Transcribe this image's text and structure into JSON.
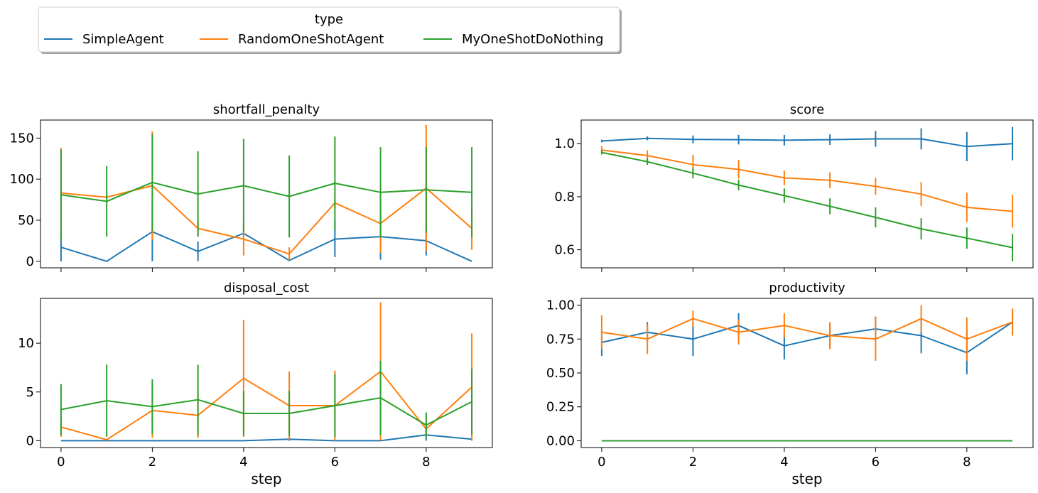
{
  "legend": {
    "title": "type",
    "entries": [
      {
        "name": "SimpleAgent",
        "color": "#1f77b4"
      },
      {
        "name": "RandomOneShotAgent",
        "color": "#ff7f0e"
      },
      {
        "name": "MyOneShotDoNothing",
        "color": "#2ca02c"
      }
    ]
  },
  "chart_data": [
    {
      "type": "line",
      "title": "shortfall_penalty",
      "xlabel": "",
      "ylabel": "",
      "x": [
        0,
        1,
        2,
        3,
        4,
        5,
        6,
        7,
        8,
        9
      ],
      "xlim": [
        -0.45,
        9.45
      ],
      "ylim": [
        -8,
        172
      ],
      "yticks": [
        0,
        50,
        100,
        150
      ],
      "xticks": [
        0,
        2,
        4,
        6,
        8
      ],
      "show_xtick_labels": false,
      "series": [
        {
          "name": "SimpleAgent",
          "color": "#1f77b4",
          "values": [
            17,
            0,
            36,
            12,
            34,
            1,
            27,
            30,
            25,
            0
          ],
          "err": [
            17,
            0,
            36,
            12,
            5,
            1,
            22,
            28,
            18,
            0
          ]
        },
        {
          "name": "RandomOneShotAgent",
          "color": "#ff7f0e",
          "values": [
            83,
            78,
            92,
            40,
            27,
            9,
            71,
            46,
            89,
            40
          ],
          "err": [
            55,
            5,
            66,
            10,
            20,
            8,
            6,
            36,
            77,
            26
          ]
        },
        {
          "name": "MyOneShotDoNothing",
          "color": "#2ca02c",
          "values": [
            81,
            73,
            96,
            82,
            92,
            79,
            95,
            84,
            87,
            84
          ],
          "err": [
            55,
            43,
            59,
            52,
            57,
            50,
            57,
            55,
            52,
            55
          ]
        }
      ]
    },
    {
      "type": "line",
      "title": "score",
      "xlabel": "",
      "ylabel": "",
      "x": [
        0,
        1,
        2,
        3,
        4,
        5,
        6,
        7,
        8,
        9
      ],
      "xlim": [
        -0.45,
        9.45
      ],
      "ylim": [
        0.532,
        1.089
      ],
      "yticks": [
        0.6,
        0.8,
        1.0
      ],
      "ytick_labels": [
        "0.6",
        "0.8",
        "1.0"
      ],
      "xticks": [
        0,
        2,
        4,
        6,
        8
      ],
      "show_xtick_labels": false,
      "series": [
        {
          "name": "SimpleAgent",
          "color": "#1f77b4",
          "values": [
            1.01,
            1.02,
            1.016,
            1.015,
            1.013,
            1.015,
            1.018,
            1.018,
            0.989,
            1.0
          ],
          "err": [
            0.005,
            0.007,
            0.015,
            0.018,
            0.02,
            0.02,
            0.03,
            0.04,
            0.055,
            0.063
          ]
        },
        {
          "name": "RandomOneShotAgent",
          "color": "#ff7f0e",
          "values": [
            0.976,
            0.955,
            0.921,
            0.903,
            0.871,
            0.862,
            0.839,
            0.81,
            0.76,
            0.745
          ],
          "err": [
            0.015,
            0.02,
            0.037,
            0.035,
            0.028,
            0.03,
            0.032,
            0.045,
            0.055,
            0.062
          ]
        },
        {
          "name": "MyOneShotDoNothing",
          "color": "#2ca02c",
          "values": [
            0.967,
            0.932,
            0.889,
            0.844,
            0.804,
            0.764,
            0.722,
            0.679,
            0.644,
            0.608
          ],
          "err": [
            0.008,
            0.012,
            0.02,
            0.02,
            0.027,
            0.03,
            0.038,
            0.04,
            0.04,
            0.052
          ]
        }
      ]
    },
    {
      "type": "line",
      "title": "disposal_cost",
      "xlabel": "step",
      "ylabel": "",
      "x": [
        0,
        1,
        2,
        3,
        4,
        5,
        6,
        7,
        8,
        9
      ],
      "xlim": [
        -0.45,
        9.45
      ],
      "ylim": [
        -0.7,
        14.6
      ],
      "yticks": [
        0,
        5,
        10
      ],
      "xticks": [
        0,
        2,
        4,
        6,
        8
      ],
      "show_xtick_labels": true,
      "series": [
        {
          "name": "SimpleAgent",
          "color": "#1f77b4",
          "values": [
            0,
            0,
            0,
            0,
            0,
            0.15,
            0,
            0,
            0.6,
            0.15
          ],
          "err": [
            0,
            0,
            0,
            0,
            0,
            0.15,
            0,
            0,
            0.6,
            0.15
          ]
        },
        {
          "name": "RandomOneShotAgent",
          "color": "#ff7f0e",
          "values": [
            1.4,
            0.1,
            3.1,
            2.6,
            6.4,
            3.6,
            3.6,
            7.1,
            1.2,
            5.5
          ],
          "err": [
            1.0,
            0.1,
            2.8,
            2.3,
            6.0,
            3.5,
            3.6,
            7.1,
            0.8,
            5.5
          ]
        },
        {
          "name": "MyOneShotDoNothing",
          "color": "#2ca02c",
          "values": [
            3.2,
            4.1,
            3.5,
            4.2,
            2.8,
            2.8,
            3.6,
            4.4,
            1.6,
            4.0
          ],
          "err": [
            2.6,
            3.7,
            2.8,
            3.6,
            2.3,
            2.3,
            3.2,
            3.8,
            1.3,
            3.4
          ]
        }
      ]
    },
    {
      "type": "line",
      "title": "productivity",
      "xlabel": "step",
      "ylabel": "",
      "x": [
        0,
        1,
        2,
        3,
        4,
        5,
        6,
        7,
        8,
        9
      ],
      "xlim": [
        -0.45,
        9.45
      ],
      "ylim": [
        -0.05,
        1.05
      ],
      "yticks": [
        0.0,
        0.25,
        0.5,
        0.75,
        1.0
      ],
      "ytick_labels": [
        "0.00",
        "0.25",
        "0.50",
        "0.75",
        "1.00"
      ],
      "xticks": [
        0,
        2,
        4,
        6,
        8
      ],
      "show_xtick_labels": true,
      "series": [
        {
          "name": "SimpleAgent",
          "color": "#1f77b4",
          "values": [
            0.725,
            0.8,
            0.75,
            0.85,
            0.7,
            0.775,
            0.825,
            0.775,
            0.65,
            0.875
          ],
          "err": [
            0.1,
            0.075,
            0.125,
            0.09,
            0.1,
            0.09,
            0.09,
            0.13,
            0.16,
            0.09
          ]
        },
        {
          "name": "RandomOneShotAgent",
          "color": "#ff7f0e",
          "values": [
            0.8,
            0.75,
            0.9,
            0.8,
            0.85,
            0.775,
            0.75,
            0.9,
            0.75,
            0.875
          ],
          "err": [
            0.125,
            0.11,
            0.06,
            0.09,
            0.09,
            0.1,
            0.16,
            0.1,
            0.16,
            0.1
          ]
        },
        {
          "name": "MyOneShotDoNothing",
          "color": "#2ca02c",
          "values": [
            0,
            0,
            0,
            0,
            0,
            0,
            0,
            0,
            0,
            0
          ],
          "err": [
            0,
            0,
            0,
            0,
            0,
            0,
            0,
            0,
            0,
            0
          ]
        }
      ]
    }
  ]
}
